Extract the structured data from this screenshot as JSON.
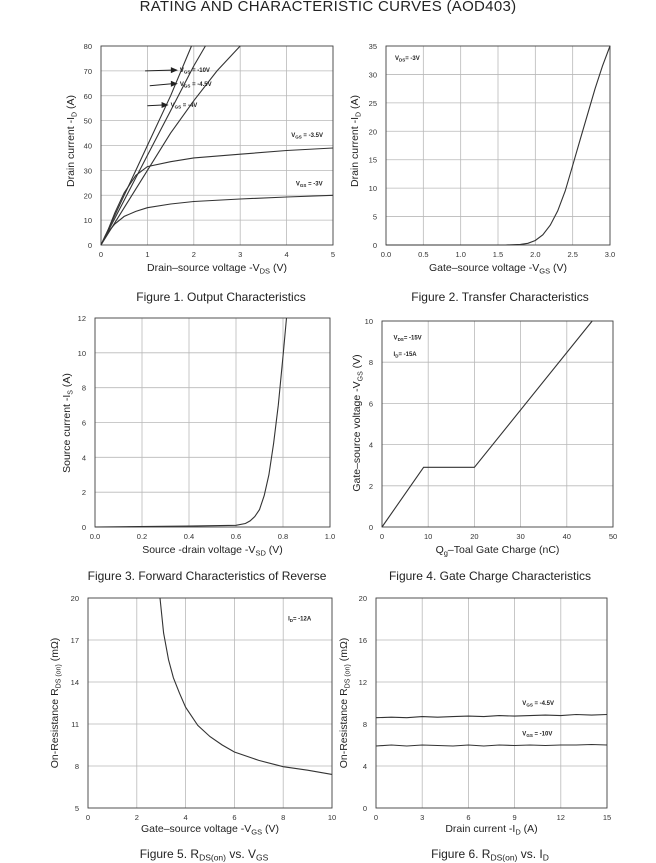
{
  "page_title": "RATING AND CHARACTERISTIC CURVES (AOD403)",
  "chart_data": [
    {
      "id": "fig1",
      "type": "line",
      "caption": "Figure 1. Output Characteristics",
      "xlabel": "Drain–source voltage -V",
      "xlabel_sub": "DS",
      "xlabel_suffix": " (V)",
      "ylabel": "Drain current -I",
      "ylabel_sub": "D",
      "ylabel_suffix": " (A)",
      "xlim": [
        0,
        5
      ],
      "ylim": [
        0,
        80
      ],
      "xticks": [
        0,
        1,
        2,
        3,
        4,
        5
      ],
      "yticks": [
        0,
        10,
        20,
        30,
        40,
        50,
        60,
        70,
        80
      ],
      "grid": true,
      "series": [
        {
          "name": "VGS = -10V",
          "x": [
            0,
            0.5,
            1.0,
            1.5,
            1.95
          ],
          "y": [
            0,
            20,
            40,
            60,
            80
          ]
        },
        {
          "name": "VGS = -4.5V",
          "x": [
            0,
            0.5,
            1.0,
            1.5,
            2.0,
            2.25
          ],
          "y": [
            0,
            18,
            36,
            54,
            72,
            80
          ]
        },
        {
          "name": "VGS = -4V",
          "x": [
            0,
            0.5,
            1.0,
            1.5,
            2.0,
            2.5,
            3.0
          ],
          "y": [
            0,
            15,
            30,
            45,
            58,
            70,
            80
          ]
        },
        {
          "name": "VGS = -3.5V",
          "x": [
            0,
            0.15,
            0.3,
            0.5,
            0.75,
            1.0,
            1.5,
            2.0,
            3.0,
            4.0,
            5.0
          ],
          "y": [
            0,
            6,
            13,
            21,
            28,
            31.5,
            33.5,
            35,
            36.5,
            38,
            39
          ]
        },
        {
          "name": "VGS = -3V",
          "x": [
            0,
            0.1,
            0.3,
            0.5,
            0.75,
            1.0,
            1.5,
            2.0,
            3.0,
            4.0,
            5.0
          ],
          "y": [
            0,
            4,
            8.5,
            11.5,
            13.5,
            15,
            16.5,
            17.5,
            18.5,
            19.3,
            20
          ]
        }
      ],
      "annotations": [
        {
          "text": "VGS = -10V",
          "x": 1.7,
          "y": 69.5,
          "arrow_from": [
            0.95,
            70
          ]
        },
        {
          "text": "VGS = -4.5V",
          "x": 1.7,
          "y": 64,
          "arrow_from": [
            1.05,
            64
          ]
        },
        {
          "text": "VGS = -4V",
          "x": 1.5,
          "y": 55.5,
          "arrow_from": [
            1.0,
            56
          ]
        },
        {
          "text": "VGS = -3.5V",
          "x": 4.1,
          "y": 43.5
        },
        {
          "text": "VGS = -3V",
          "x": 4.2,
          "y": 24
        }
      ]
    },
    {
      "id": "fig2",
      "type": "line",
      "caption": "Figure 2. Transfer Characteristics",
      "xlabel": "Gate–source voltage -V",
      "xlabel_sub": "GS",
      "xlabel_suffix": " (V)",
      "ylabel": "Drain current -I",
      "ylabel_sub": "D",
      "ylabel_suffix": " (A)",
      "xlim": [
        0,
        3
      ],
      "ylim": [
        0,
        35
      ],
      "xticks": [
        0,
        0.5,
        1.0,
        1.5,
        2.0,
        2.5,
        3.0
      ],
      "xticklabels": [
        "0.0",
        "0.5",
        "1.0",
        "1.5",
        "2.0",
        "2.5",
        "3.0"
      ],
      "yticks": [
        0,
        5,
        10,
        15,
        20,
        25,
        30,
        35
      ],
      "grid": true,
      "series": [
        {
          "name": "",
          "x": [
            0,
            1.6,
            1.8,
            1.9,
            2.0,
            2.1,
            2.2,
            2.3,
            2.4,
            2.5,
            2.6,
            2.7,
            2.8,
            2.9,
            3.0
          ],
          "y": [
            0,
            0,
            0.1,
            0.3,
            0.8,
            1.8,
            3.5,
            6.0,
            9.5,
            14.0,
            18.5,
            23.0,
            27.5,
            31.5,
            35
          ]
        }
      ],
      "annotations": [
        {
          "text": "VDS= -3V",
          "x": 0.12,
          "y": 32.5
        }
      ]
    },
    {
      "id": "fig3",
      "type": "line",
      "caption": "Figure 3. Forward Characteristics of Reverse",
      "xlabel": "Source -drain voltage -V",
      "xlabel_sub": "SD",
      "xlabel_suffix": " (V)",
      "ylabel": "Source current -I",
      "ylabel_sub": "S",
      "ylabel_suffix": " (A)",
      "xlim": [
        0,
        1.0
      ],
      "ylim": [
        0,
        12
      ],
      "xticks": [
        0,
        0.2,
        0.4,
        0.6,
        0.8,
        1.0
      ],
      "xticklabels": [
        "0.0",
        "0.2",
        "0.4",
        "0.6",
        "0.8",
        "1.0"
      ],
      "yticks": [
        0,
        2,
        4,
        6,
        8,
        10,
        12
      ],
      "grid": true,
      "series": [
        {
          "name": "",
          "x": [
            0,
            0.4,
            0.6,
            0.64,
            0.66,
            0.68,
            0.7,
            0.72,
            0.74,
            0.76,
            0.78,
            0.8,
            0.815
          ],
          "y": [
            0,
            0.05,
            0.1,
            0.2,
            0.35,
            0.6,
            1.0,
            1.8,
            3.0,
            4.8,
            7.0,
            9.8,
            12
          ]
        }
      ],
      "annotations": []
    },
    {
      "id": "fig4",
      "type": "line",
      "caption": "Figure 4. Gate Charge Characteristics",
      "xlabel": "Q",
      "xlabel_sub": "g",
      "xlabel_suffix": "–Toal Gate Charge  (nC)",
      "ylabel": "Gate–source voltage -V",
      "ylabel_sub": "GS",
      "ylabel_suffix": " (V)",
      "xlim": [
        0,
        50
      ],
      "ylim": [
        0,
        10
      ],
      "xticks": [
        0,
        10,
        20,
        30,
        40,
        50
      ],
      "yticks": [
        0,
        2,
        4,
        6,
        8,
        10
      ],
      "grid": true,
      "series": [
        {
          "name": "",
          "x": [
            0,
            9,
            20,
            45.5
          ],
          "y": [
            0,
            2.9,
            2.9,
            10
          ]
        }
      ],
      "annotations": [
        {
          "text": "VDS= -15V",
          "x": 2.5,
          "y": 9.1
        },
        {
          "text": "ID= -15A",
          "x": 2.5,
          "y": 8.3
        }
      ]
    },
    {
      "id": "fig5",
      "type": "line",
      "caption": "Figure 5. R",
      "caption_sub": "DS(on)",
      "caption_suffix": " vs. V",
      "caption_sub2": "GS",
      "xlabel": "Gate–source voltage -V",
      "xlabel_sub": "GS",
      "xlabel_suffix": " (V)",
      "ylabel": "On-Resistance R",
      "ylabel_sub": "DS (on)",
      "ylabel_suffix": " (mΩ)",
      "xlim": [
        0,
        10
      ],
      "ylim": [
        5,
        20
      ],
      "xticks": [
        0,
        2,
        4,
        6,
        8,
        10
      ],
      "yticks": [
        5,
        8,
        11,
        14,
        17,
        20
      ],
      "grid": true,
      "series": [
        {
          "name": "",
          "x": [
            2.95,
            3.1,
            3.3,
            3.5,
            3.75,
            4.0,
            4.5,
            5.0,
            5.5,
            6.0,
            7.0,
            8.0,
            9.0,
            10.0
          ],
          "y": [
            20,
            17.5,
            15.6,
            14.3,
            13.2,
            12.2,
            10.9,
            10.1,
            9.5,
            9.0,
            8.4,
            7.95,
            7.7,
            7.4
          ]
        }
      ],
      "annotations": [
        {
          "text": "ID= -12A",
          "x": 8.2,
          "y": 18.4
        }
      ]
    },
    {
      "id": "fig6",
      "type": "line",
      "caption": "Figure 6. R",
      "caption_sub": "DS(on)",
      "caption_suffix": " vs. I",
      "caption_sub2": "D",
      "xlabel": "Drain current -I",
      "xlabel_sub": "D",
      "xlabel_suffix": " (A)",
      "ylabel": "On-Resistance R",
      "ylabel_sub": "DS (on)",
      "ylabel_suffix": " (mΩ)",
      "xlim": [
        0,
        15
      ],
      "ylim": [
        0,
        20
      ],
      "xticks": [
        0,
        3,
        6,
        9,
        12,
        15
      ],
      "yticks": [
        0,
        4,
        8,
        12,
        16,
        20
      ],
      "grid": true,
      "series": [
        {
          "name": "VGS = -4.5V",
          "x": [
            0,
            1,
            2,
            3,
            4,
            5,
            6,
            7,
            8,
            9,
            10,
            11,
            12,
            13,
            14,
            15
          ],
          "y": [
            8.6,
            8.65,
            8.6,
            8.7,
            8.65,
            8.7,
            8.75,
            8.7,
            8.8,
            8.75,
            8.8,
            8.85,
            8.8,
            8.9,
            8.85,
            8.9
          ]
        },
        {
          "name": "VGS = -10V",
          "x": [
            0,
            1,
            2,
            3,
            4,
            5,
            6,
            7,
            8,
            9,
            10,
            11,
            12,
            13,
            14,
            15
          ],
          "y": [
            5.9,
            6.0,
            5.9,
            6.0,
            5.95,
            5.9,
            6.0,
            5.9,
            6.0,
            5.95,
            6.0,
            5.95,
            6.0,
            6.0,
            6.05,
            6.0
          ]
        }
      ],
      "annotations": [
        {
          "text": "VGS = -4.5V",
          "x": 9.5,
          "y": 9.8
        },
        {
          "text": "VGS = -10V",
          "x": 9.5,
          "y": 6.9
        }
      ]
    }
  ]
}
